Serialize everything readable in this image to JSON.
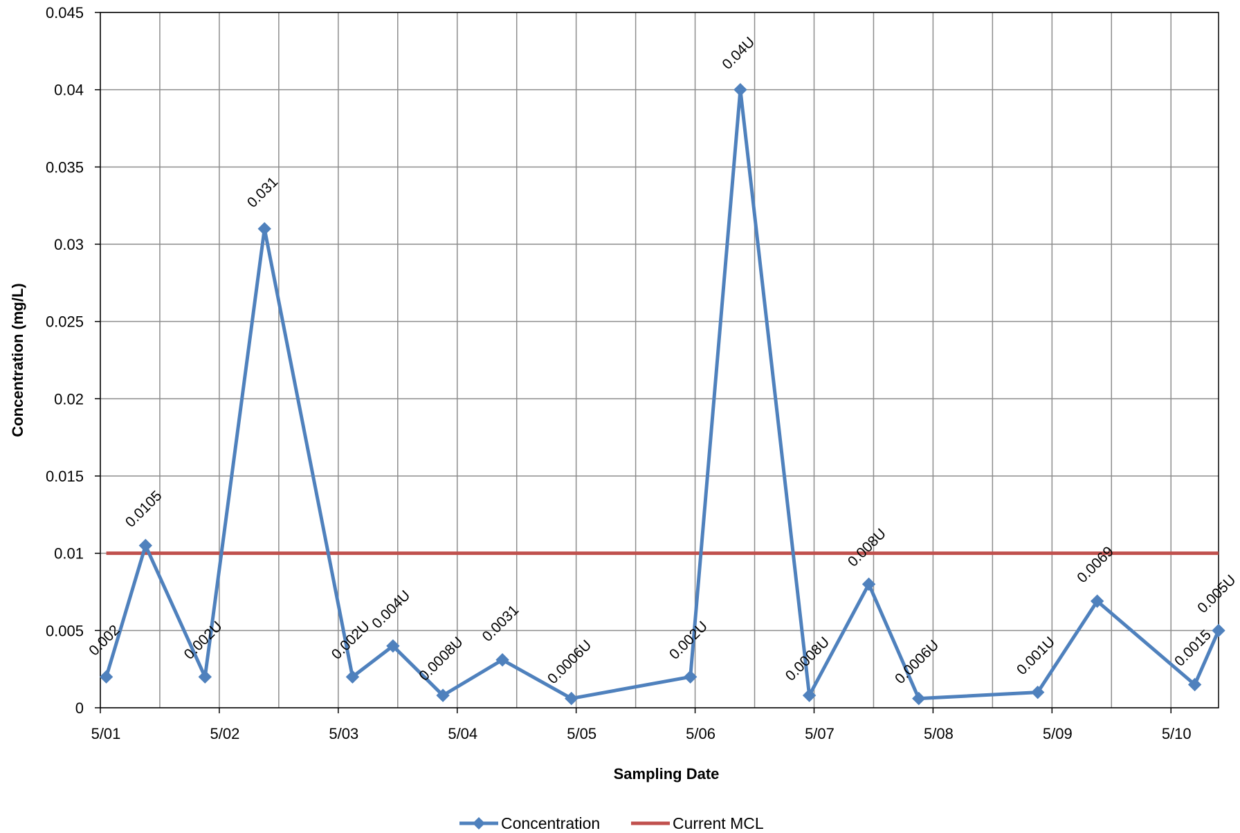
{
  "chart_data": {
    "type": "line",
    "xlabel": "Sampling Date",
    "ylabel": "Concentration (mg/L)",
    "ylim": [
      0,
      0.045
    ],
    "yticks": [
      0,
      0.005,
      0.01,
      0.015,
      0.02,
      0.025,
      0.03,
      0.035,
      0.04,
      0.045
    ],
    "ytick_labels": [
      "0",
      "0.005",
      "0.01",
      "0.015",
      "0.02",
      "0.025",
      "0.03",
      "0.035",
      "0.04",
      "0.045"
    ],
    "xlim": [
      0,
      9.4
    ],
    "xticks": [
      0,
      1,
      2,
      3,
      4,
      5,
      6,
      7,
      8,
      9
    ],
    "xtick_labels": [
      "5/01",
      "5/02",
      "5/03",
      "5/04",
      "5/05",
      "5/06",
      "5/07",
      "5/08",
      "5/09",
      "5/10"
    ],
    "grid": true,
    "legend_position": "bottom",
    "series": [
      {
        "name": "Concentration",
        "color": "#4F81BD",
        "marker": "diamond",
        "x": [
          0.05,
          0.38,
          0.88,
          1.38,
          2.12,
          2.46,
          2.88,
          3.38,
          3.96,
          4.96,
          5.38,
          5.96,
          6.46,
          6.88,
          7.88,
          8.38,
          9.2,
          9.4
        ],
        "y": [
          0.002,
          0.0105,
          0.002,
          0.031,
          0.002,
          0.004,
          0.0008,
          0.0031,
          0.0006,
          0.002,
          0.04,
          0.0008,
          0.008,
          0.0006,
          0.001,
          0.0069,
          0.0015,
          0.005
        ],
        "labels": [
          "0.002",
          "0.0105",
          "0.002U",
          "0.031",
          "0.002U",
          "0.004U",
          "0.0008U",
          "0.0031",
          "0.0006U",
          "0.002U",
          "0.04U",
          "0.0008U",
          "0.008U",
          "0.0006U",
          "0.001U",
          "0.0069",
          "0.0015",
          "0.005U"
        ]
      },
      {
        "name": "Current MCL",
        "color": "#C0504D",
        "x": [
          0.05,
          9.4
        ],
        "y": [
          0.01,
          0.01
        ]
      }
    ]
  }
}
